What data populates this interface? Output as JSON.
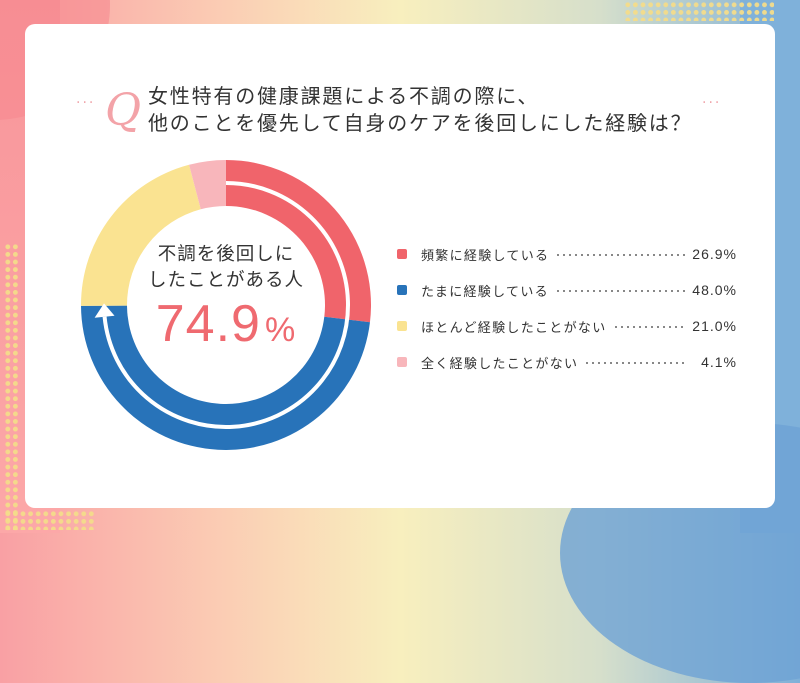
{
  "title": {
    "q_mark": "Q",
    "line1": "女性特有の健康課題による不調の際に、",
    "line2": "他のことを優先して自身のケアを後回しにした経験は？",
    "deco_dots": "···"
  },
  "center": {
    "label_line1": "不調を後回しに",
    "label_line2": "したことがある人",
    "value": "74.9",
    "unit": "%"
  },
  "legend": [
    {
      "label": "頻繁に経験している",
      "value": "26.9%",
      "color": "#f0646b"
    },
    {
      "label": "たまに経験している",
      "value": "48.0%",
      "color": "#2873b9"
    },
    {
      "label": "ほとんど経験したことがない",
      "value": "21.0%",
      "color": "#fae391"
    },
    {
      "label": "全く経験したことがない",
      "value": "4.1%",
      "color": "#f8b6bb"
    }
  ],
  "chart_data": {
    "type": "pie",
    "subtype": "donut",
    "title": "女性特有の健康課題による不調の際に、他のことを優先して自身のケアを後回しにした経験は？",
    "categories": [
      "頻繁に経験している",
      "たまに経験している",
      "ほとんど経験したことがない",
      "全く経験したことがない"
    ],
    "values": [
      26.9,
      48.0,
      21.0,
      4.1
    ],
    "unit": "%",
    "colors": [
      "#f0646b",
      "#2873b9",
      "#fae391",
      "#f8b6bb"
    ],
    "start_angle": "12 o'clock, clockwise",
    "center_annotation": {
      "label": "不調を後回しにしたことがある人",
      "value": 74.9,
      "unit": "%"
    },
    "legend_position": "right"
  }
}
